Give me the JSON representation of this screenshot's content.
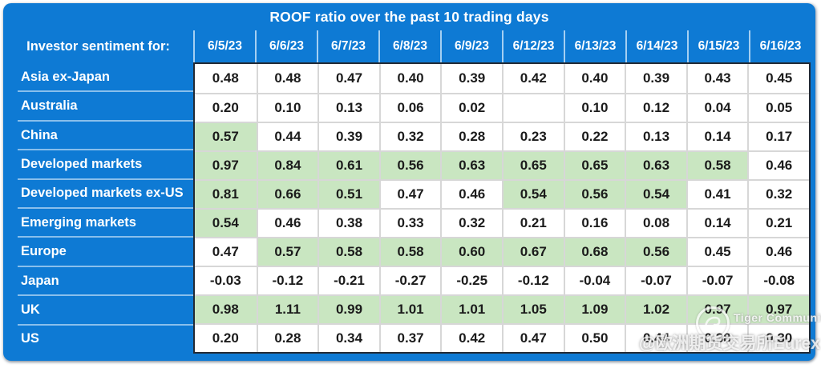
{
  "colors": {
    "blue": "#0e7ad4",
    "green": "#c9e6c1",
    "grid_border": "#222a35",
    "cell_line": "#d7d7d7",
    "text_dark": "#1b1b1b",
    "header_text": "#ffffff"
  },
  "chart_data": {
    "type": "table",
    "title": "ROOF ratio over the past 10 trading days",
    "row_header_label": "Investor sentiment for:",
    "columns": [
      "6/5/23",
      "6/6/23",
      "6/7/23",
      "6/8/23",
      "6/9/23",
      "6/12/23",
      "6/13/23",
      "6/14/23",
      "6/15/23",
      "6/16/23"
    ],
    "highlight_meaning": "green cells mark elevated ROOF ratio values",
    "rows": [
      {
        "label": "Asia ex-Japan",
        "values": [
          "0.48",
          "0.48",
          "0.47",
          "0.40",
          "0.39",
          "0.42",
          "0.40",
          "0.39",
          "0.43",
          "0.45"
        ],
        "green": []
      },
      {
        "label": "Australia",
        "values": [
          "0.20",
          "0.10",
          "0.13",
          "0.06",
          "0.02",
          "",
          "0.10",
          "0.12",
          "0.04",
          "0.05"
        ],
        "green": []
      },
      {
        "label": "China",
        "values": [
          "0.57",
          "0.44",
          "0.39",
          "0.32",
          "0.28",
          "0.23",
          "0.22",
          "0.13",
          "0.14",
          "0.17"
        ],
        "green": [
          0
        ]
      },
      {
        "label": "Developed markets",
        "values": [
          "0.97",
          "0.84",
          "0.61",
          "0.56",
          "0.63",
          "0.65",
          "0.65",
          "0.63",
          "0.58",
          "0.46"
        ],
        "green": [
          0,
          1,
          2,
          3,
          4,
          5,
          6,
          7,
          8
        ]
      },
      {
        "label": "Developed markets ex-US",
        "values": [
          "0.81",
          "0.66",
          "0.51",
          "0.47",
          "0.46",
          "0.54",
          "0.56",
          "0.54",
          "0.41",
          "0.32"
        ],
        "green": [
          0,
          1,
          2,
          5,
          6,
          7
        ]
      },
      {
        "label": "Emerging markets",
        "values": [
          "0.54",
          "0.46",
          "0.38",
          "0.33",
          "0.32",
          "0.21",
          "0.16",
          "0.08",
          "0.14",
          "0.21"
        ],
        "green": [
          0
        ]
      },
      {
        "label": "Europe",
        "values": [
          "0.47",
          "0.57",
          "0.58",
          "0.58",
          "0.60",
          "0.67",
          "0.68",
          "0.56",
          "0.45",
          "0.46"
        ],
        "green": [
          1,
          2,
          3,
          4,
          5,
          6,
          7
        ]
      },
      {
        "label": "Japan",
        "values": [
          "-0.03",
          "-0.12",
          "-0.21",
          "-0.27",
          "-0.25",
          "-0.12",
          "-0.04",
          "-0.07",
          "-0.07",
          "-0.08"
        ],
        "green": []
      },
      {
        "label": "UK",
        "values": [
          "0.98",
          "1.11",
          "0.99",
          "1.01",
          "1.01",
          "1.05",
          "1.09",
          "1.02",
          "0.97",
          "0.97"
        ],
        "green": [
          0,
          1,
          2,
          3,
          4,
          5,
          6,
          7,
          8,
          9
        ]
      },
      {
        "label": "US",
        "values": [
          "0.20",
          "0.28",
          "0.34",
          "0.37",
          "0.42",
          "0.47",
          "0.50",
          "0.44",
          "0.38",
          "0.30"
        ],
        "green": []
      }
    ]
  },
  "watermark": {
    "community": "Tiger Community",
    "handle": "@欧洲期货交易所Eurex",
    "logo": "tiger-logo-icon"
  }
}
